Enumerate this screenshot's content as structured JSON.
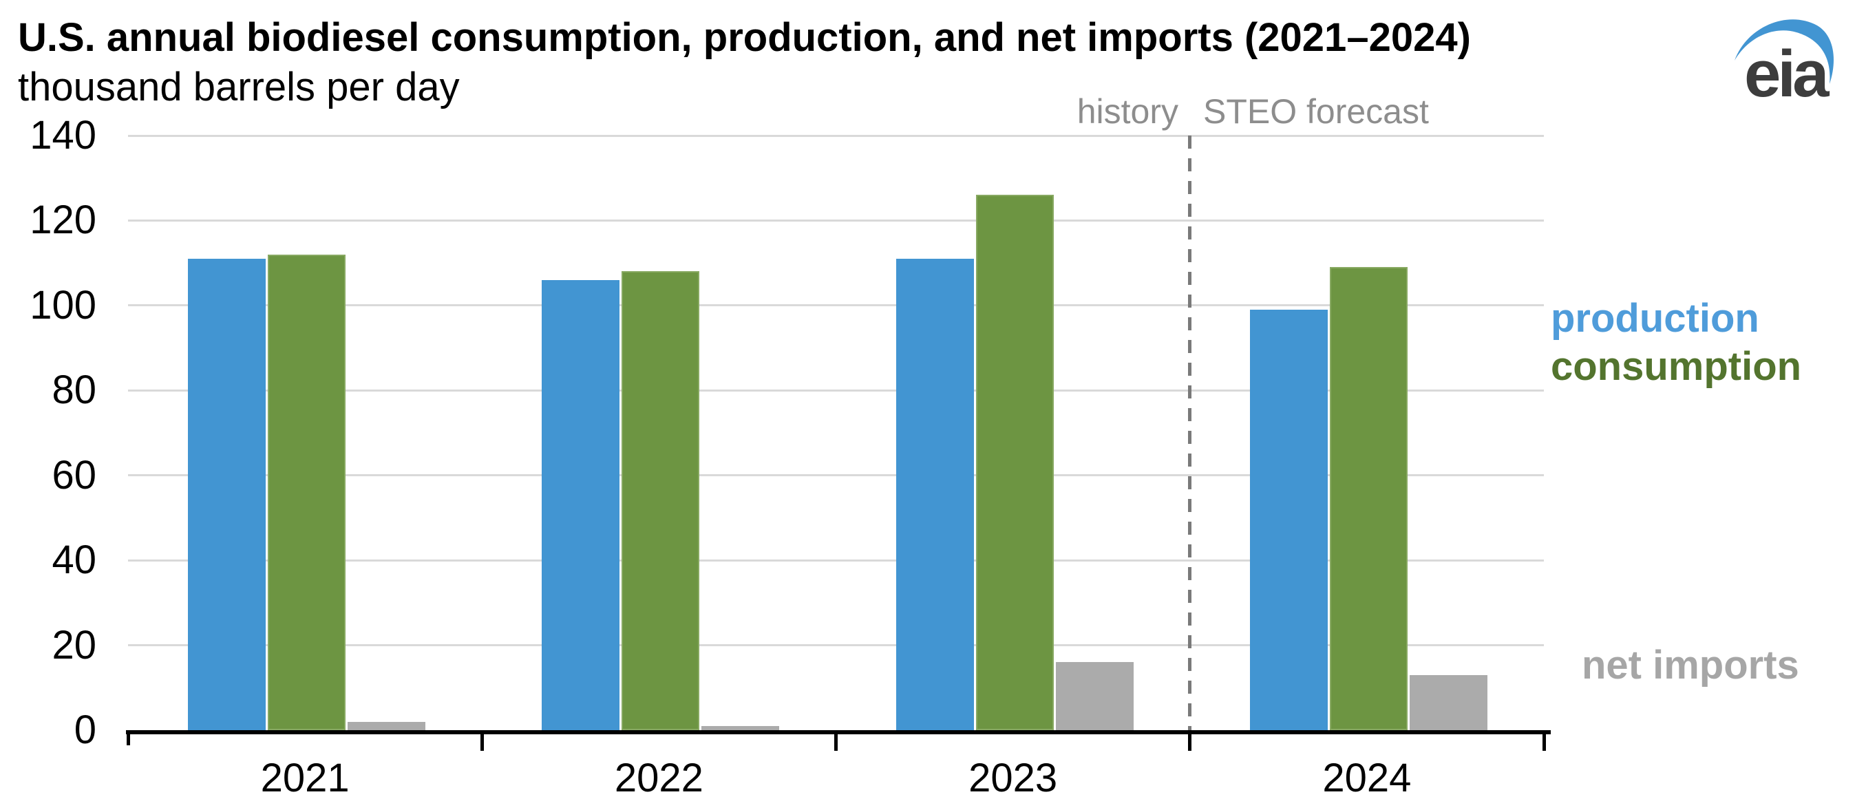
{
  "header": {
    "title": "U.S. annual biodiesel consumption, production, and net imports (2021–2024)",
    "subtitle": "thousand barrels per day",
    "logo_text": "eia"
  },
  "annotations": {
    "history_label": "history",
    "forecast_label": "STEO forecast"
  },
  "legend": [
    {
      "label": "production",
      "color": "#4f9cda"
    },
    {
      "label": "consumption",
      "color": "#53742e"
    },
    {
      "label": "net imports",
      "color": "#a6a6a6"
    }
  ],
  "colors": {
    "production_bar": "#4295d2",
    "consumption_bar": "#6d9542",
    "consumption_bar_border": "#88a962",
    "net_imports_bar": "#ababab",
    "gridline": "#d9d9d9",
    "axis": "#000000",
    "divider": "#7a7a7a",
    "phase_label_text": "#8d8d8d",
    "logo_swoosh": "#4295d2",
    "logo_text": "#3d3d3d"
  },
  "chart_data": {
    "type": "bar",
    "categories": [
      "2021",
      "2022",
      "2023",
      "2024"
    ],
    "series": [
      {
        "name": "production",
        "color": "#4295d2",
        "values": [
          111,
          106,
          111,
          99
        ]
      },
      {
        "name": "consumption",
        "color": "#6d9542",
        "border": "#88a962",
        "values": [
          112,
          108,
          126,
          109
        ]
      },
      {
        "name": "net imports",
        "color": "#ababab",
        "values": [
          2,
          1,
          16,
          13
        ]
      }
    ],
    "title": "U.S. annual biodiesel consumption, production, and net imports (2021–2024)",
    "xlabel": "",
    "ylabel": "thousand barrels per day",
    "ylim": [
      0,
      140
    ],
    "ytick_step": 20,
    "grid": true,
    "legend_position": "right-outside",
    "divider_after_category": "2023",
    "divider_left_label": "history",
    "divider_right_label": "STEO forecast"
  }
}
